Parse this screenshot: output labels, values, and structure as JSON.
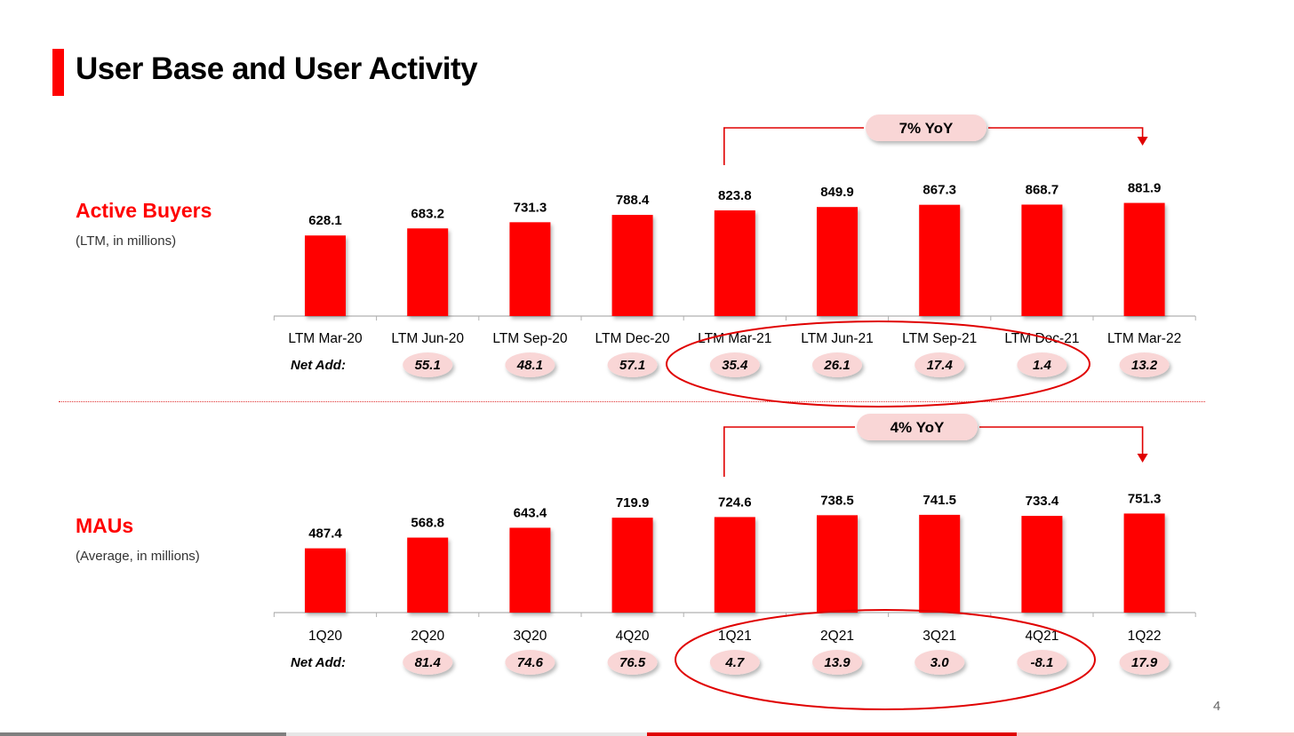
{
  "title": "User Base and User Activity",
  "page_number": "4",
  "colors": {
    "accent": "#ff0000",
    "pill": "#f9d6d6",
    "text": "#000000"
  },
  "chart_data": [
    {
      "type": "bar",
      "section_label": "Active Buyers",
      "section_sub": "(LTM, in millions)",
      "categories": [
        "LTM Mar-20",
        "LTM Jun-20",
        "LTM Sep-20",
        "LTM Dec-20",
        "LTM Mar-21",
        "LTM Jun-21",
        "LTM Sep-21",
        "LTM Dec-21",
        "LTM Mar-22"
      ],
      "values": [
        628.1,
        683.2,
        731.3,
        788.4,
        823.8,
        849.9,
        867.3,
        868.7,
        881.9
      ],
      "net_add_label": "Net Add:",
      "net_add": [
        "55.1",
        "48.1",
        "57.1",
        "35.4",
        "26.1",
        "17.4",
        "1.4",
        "13.2"
      ],
      "growth_callout": "7% YoY",
      "highlighted_range": [
        "LTM Mar-21",
        "LTM Dec-21"
      ],
      "ylim": [
        0,
        1000
      ]
    },
    {
      "type": "bar",
      "section_label": "MAUs",
      "section_sub": "(Average, in millions)",
      "categories": [
        "1Q20",
        "2Q20",
        "3Q20",
        "4Q20",
        "1Q21",
        "2Q21",
        "3Q21",
        "4Q21",
        "1Q22"
      ],
      "values": [
        487.4,
        568.8,
        643.4,
        719.9,
        724.6,
        738.5,
        741.5,
        733.4,
        751.3
      ],
      "net_add_label": "Net Add:",
      "net_add": [
        "81.4",
        "74.6",
        "76.5",
        "4.7",
        "13.9",
        "3.0",
        "-8.1",
        "17.9"
      ],
      "growth_callout": "4% YoY",
      "highlighted_range": [
        "1Q21",
        "4Q21"
      ],
      "ylim": [
        0,
        1000
      ]
    }
  ]
}
